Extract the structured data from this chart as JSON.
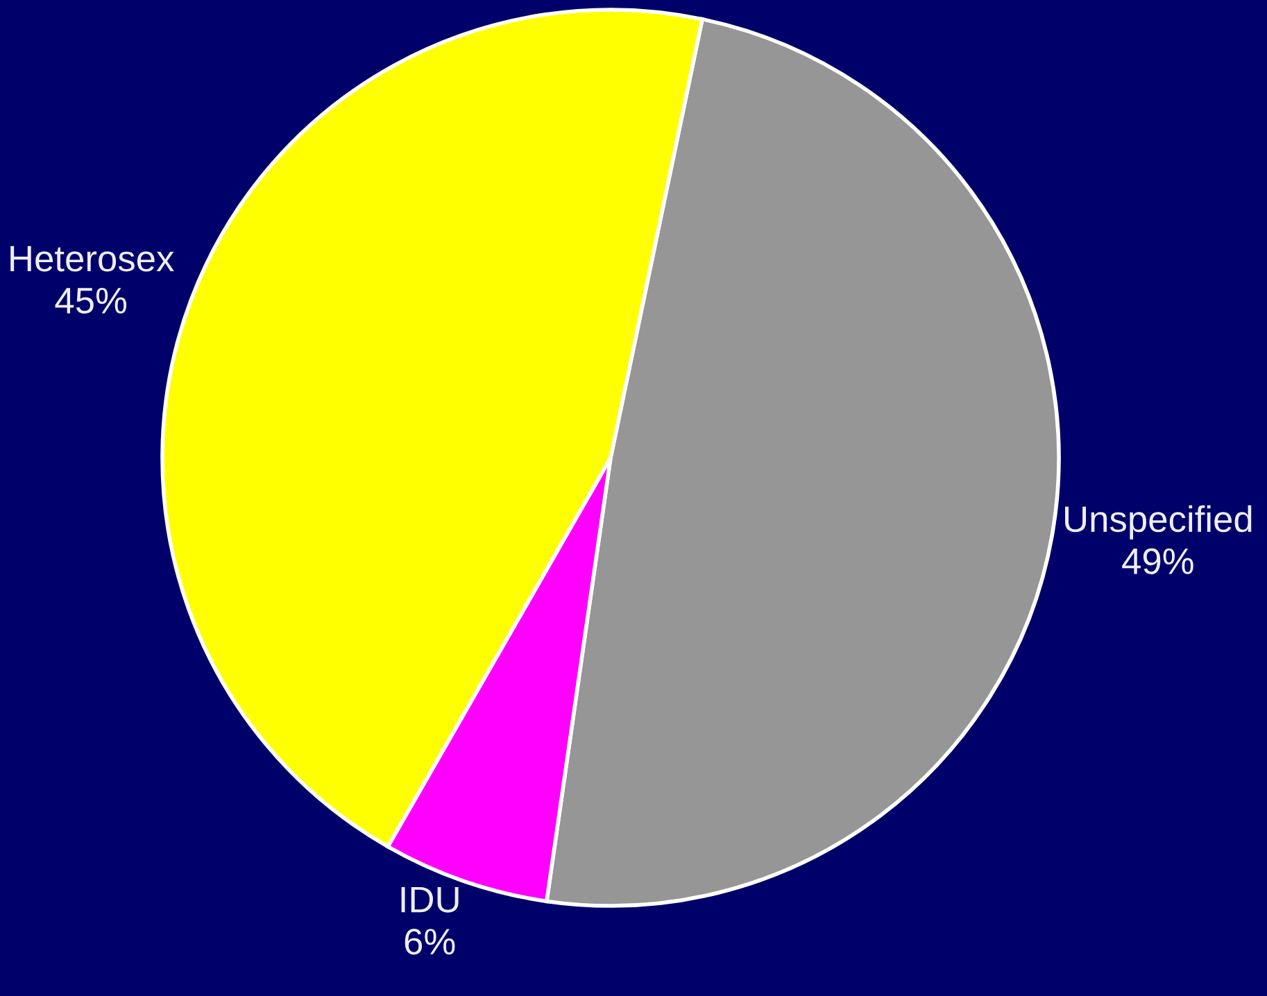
{
  "chart_data": {
    "type": "pie",
    "categories": [
      "Unspecified",
      "IDU",
      "Heterosex"
    ],
    "values": [
      49,
      6,
      45
    ],
    "colors": [
      "#969696",
      "#ff00ff",
      "#ffff00"
    ],
    "value_labels": [
      "49%",
      "6%",
      "45%"
    ]
  }
}
